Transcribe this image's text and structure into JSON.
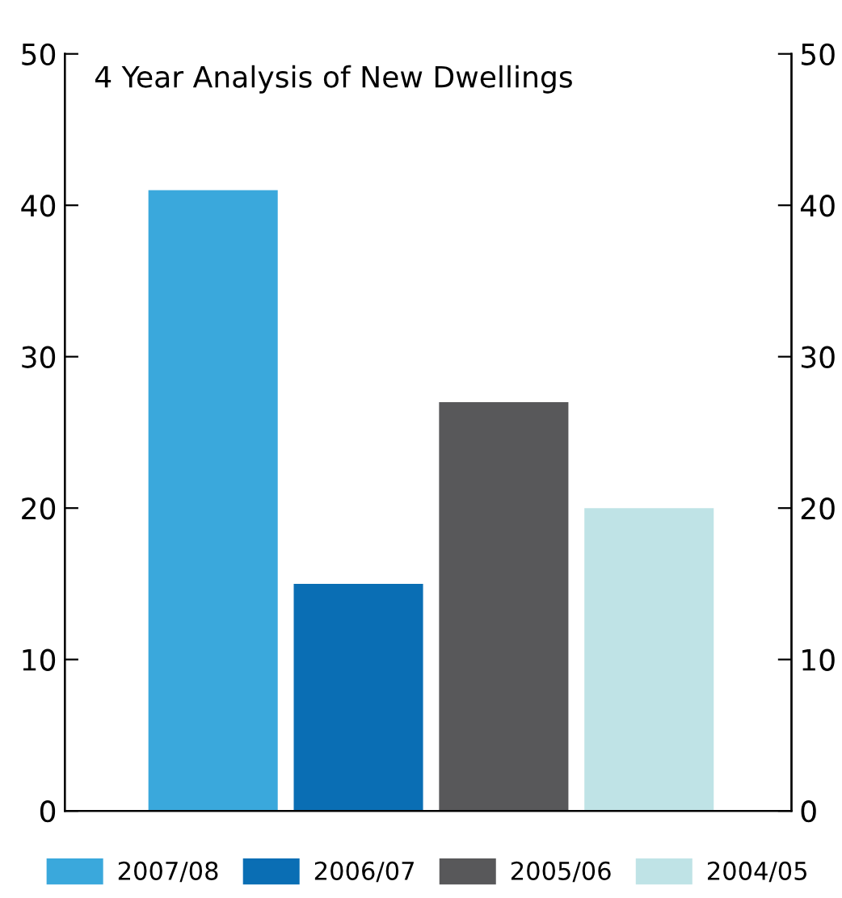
{
  "chart_data": {
    "type": "bar",
    "title": "4 Year Analysis of New Dwellings",
    "categories": [
      null,
      null,
      null,
      null
    ],
    "series": [
      {
        "name": "2007/08",
        "color": "#3aa8dc",
        "values": [
          41,
          null,
          null,
          null
        ]
      },
      {
        "name": "2006/07",
        "color": "#0a6eb4",
        "values": [
          null,
          15,
          null,
          null
        ]
      },
      {
        "name": "2005/06",
        "color": "#58585a",
        "values": [
          null,
          null,
          27,
          null
        ]
      },
      {
        "name": "2004/05",
        "color": "#bfe3e6",
        "values": [
          null,
          null,
          null,
          20
        ]
      }
    ],
    "ylim": [
      0,
      50
    ],
    "yticks": [
      0,
      10,
      20,
      30,
      40,
      50
    ],
    "y2lim": [
      0,
      50
    ],
    "y2ticks": [
      0,
      10,
      20,
      30,
      40,
      50
    ],
    "grid": false,
    "legend": "bottom",
    "tick_labels": "y"
  }
}
